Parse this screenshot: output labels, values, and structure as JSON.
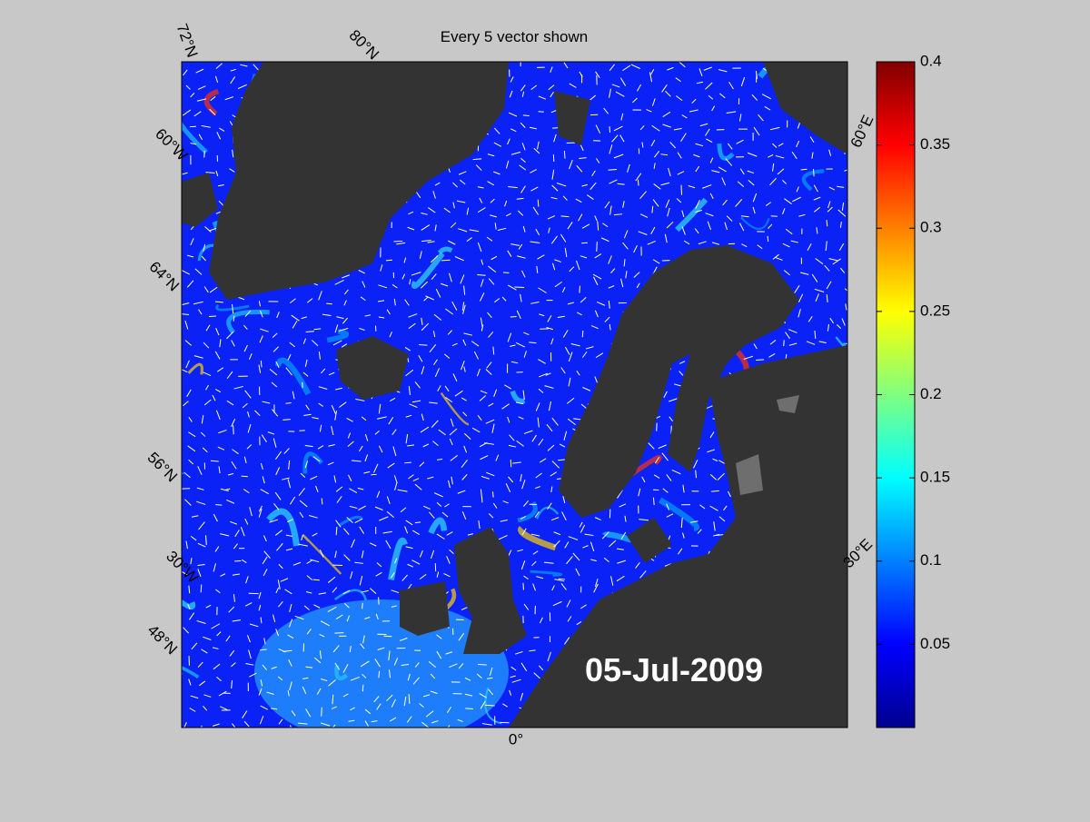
{
  "title": "Every 5 vector shown",
  "date": "05-Jul-2009",
  "graticule_labels": [
    "72°N",
    "80°N",
    "60°W",
    "64°N",
    "56°N",
    "30°W",
    "48°N",
    "60°E",
    "30°E",
    "0°"
  ],
  "colorbar": {
    "ylim": [
      0,
      0.4
    ],
    "yticks": [
      0.05,
      0.1,
      0.15,
      0.2,
      0.25,
      0.3,
      0.35,
      0.4
    ]
  }
}
